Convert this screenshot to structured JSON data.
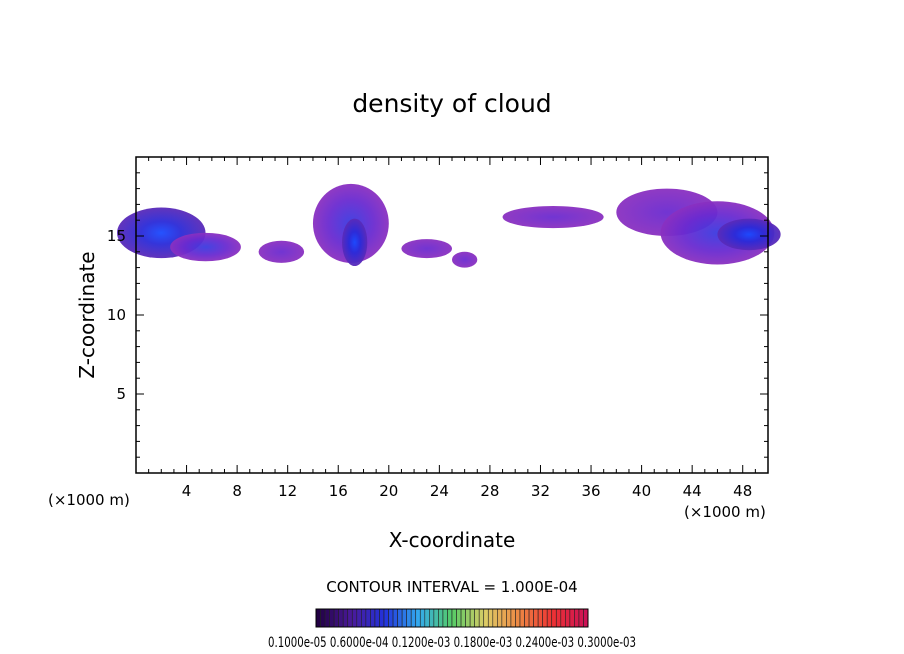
{
  "chart_data": {
    "type": "heatmap",
    "title": "density of cloud",
    "xlabel": "X-coordinate",
    "ylabel": "Z-coordinate",
    "x_unit_left": "(×1000 m)",
    "x_unit_right": "(×1000 m)",
    "xlim": [
      0,
      50
    ],
    "ylim": [
      0,
      20
    ],
    "xticks": [
      4,
      8,
      12,
      16,
      20,
      24,
      28,
      32,
      36,
      40,
      44,
      48
    ],
    "yticks": [
      5,
      10,
      15
    ],
    "contour_interval_text": "CONTOUR INTERVAL = 1.000E-04",
    "colorbar_labels_text": "0.1000e-05 0.6000e-04 0.1200e-03 0.1800e-03 0.2400e-03 0.3000e-03",
    "colorbar_colors": [
      "#220044",
      "#4a1a9a",
      "#2233dd",
      "#33aaee",
      "#55cc66",
      "#ddcc66",
      "#ee8844",
      "#ee3333",
      "#cc1155"
    ],
    "blobs": [
      {
        "cx": 2.0,
        "cy": 15.2,
        "rx": 3.5,
        "ry": 1.6,
        "level": 3
      },
      {
        "cx": 5.5,
        "cy": 14.3,
        "rx": 2.8,
        "ry": 0.9,
        "level": 2
      },
      {
        "cx": 11.5,
        "cy": 14.0,
        "rx": 1.8,
        "ry": 0.7,
        "level": 1
      },
      {
        "cx": 17.0,
        "cy": 15.8,
        "rx": 3.0,
        "ry": 2.5,
        "level": 2
      },
      {
        "cx": 17.3,
        "cy": 14.6,
        "rx": 1.0,
        "ry": 1.5,
        "level": 3
      },
      {
        "cx": 23.0,
        "cy": 14.2,
        "rx": 2.0,
        "ry": 0.6,
        "level": 1
      },
      {
        "cx": 26.0,
        "cy": 13.5,
        "rx": 1.0,
        "ry": 0.5,
        "level": 1
      },
      {
        "cx": 33.0,
        "cy": 16.2,
        "rx": 4.0,
        "ry": 0.7,
        "level": 1
      },
      {
        "cx": 42.0,
        "cy": 16.5,
        "rx": 4.0,
        "ry": 1.5,
        "level": 1
      },
      {
        "cx": 46.0,
        "cy": 15.2,
        "rx": 4.5,
        "ry": 2.0,
        "level": 2
      },
      {
        "cx": 48.5,
        "cy": 15.1,
        "rx": 2.5,
        "ry": 1.0,
        "level": 3
      }
    ],
    "grid": false
  }
}
